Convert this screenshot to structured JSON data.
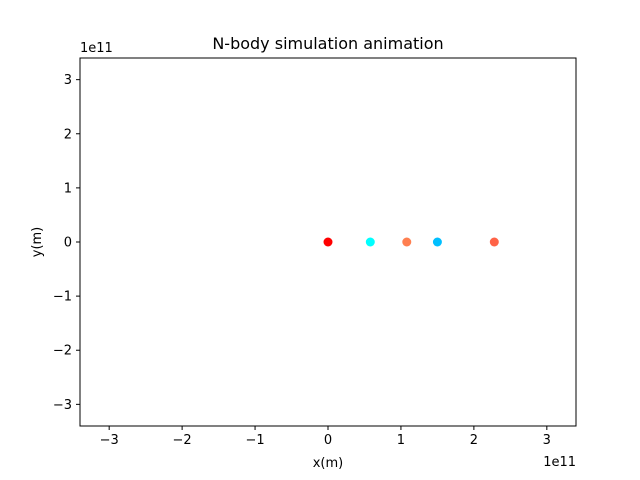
{
  "chart_data": {
    "type": "scatter",
    "title": "N-body simulation animation",
    "xlabel": "x(m)",
    "ylabel": "y(m)",
    "x_offset_text": "1e11",
    "y_offset_text": "1e11",
    "xlim": [
      -3.4,
      3.4
    ],
    "ylim": [
      -3.4,
      3.4
    ],
    "x_ticks": [
      -3,
      -2,
      -1,
      0,
      1,
      2,
      3
    ],
    "y_ticks": [
      -3,
      -2,
      -1,
      0,
      1,
      2,
      3
    ],
    "x_tick_labels": [
      "−3",
      "−2",
      "−1",
      "0",
      "1",
      "2",
      "3"
    ],
    "y_tick_labels": [
      "−3",
      "−2",
      "−1",
      "0",
      "1",
      "2",
      "3"
    ],
    "grid": false,
    "points": [
      {
        "x": 0.0,
        "y": 0.0,
        "color": "#ff0000"
      },
      {
        "x": 0.58,
        "y": 0.0,
        "color": "#00ffff"
      },
      {
        "x": 1.08,
        "y": 0.0,
        "color": "#ff7f50"
      },
      {
        "x": 1.5,
        "y": 0.0,
        "color": "#00bfff"
      },
      {
        "x": 2.28,
        "y": 0.0,
        "color": "#ff6347"
      }
    ]
  }
}
